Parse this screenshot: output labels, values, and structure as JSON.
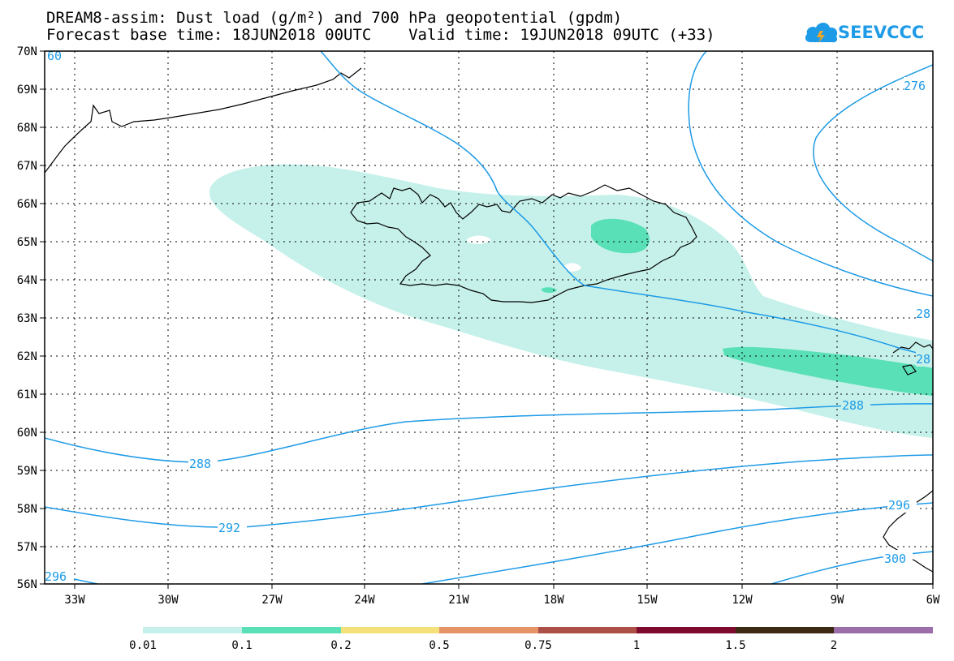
{
  "title_line1": "DREAM8-assim: Dust load (g/m²) and 700 hPa geopotential (gpdm)",
  "title_line2": "Forecast base time: 18JUN2018 00UTC    Valid time: 19JUN2018 09UTC (+33)",
  "logo_text": "SEEVCCC",
  "logo_icon": "cloud-icon",
  "colors": {
    "contour": "#1e9be6",
    "coast": "#000000",
    "dust_low": "#c6f1ea",
    "dust_mid": "#5ae0b6"
  },
  "map": {
    "lat_labels": [
      "70N",
      "69N",
      "68N",
      "67N",
      "66N",
      "65N",
      "64N",
      "63N",
      "62N",
      "61N",
      "60N",
      "59N",
      "58N",
      "57N",
      "56N"
    ],
    "lon_labels": [
      "33W",
      "30W",
      "27W",
      "24W",
      "21W",
      "18W",
      "15W",
      "12W",
      "9W",
      "6W"
    ],
    "contour_labels": [
      "276",
      "28",
      "28",
      "288",
      "288",
      "292",
      "296",
      "296",
      "300",
      "60"
    ]
  },
  "colorbar": {
    "labels": [
      "0.01",
      "0.1",
      "0.2",
      "0.5",
      "0.75",
      "1",
      "1.5",
      "2"
    ],
    "colors": [
      "#c6f1ea",
      "#5ae0b6",
      "#f5e17a",
      "#e69368",
      "#ad5048",
      "#7e0a2d",
      "#3d2a14",
      "#9b6ea9"
    ]
  }
}
